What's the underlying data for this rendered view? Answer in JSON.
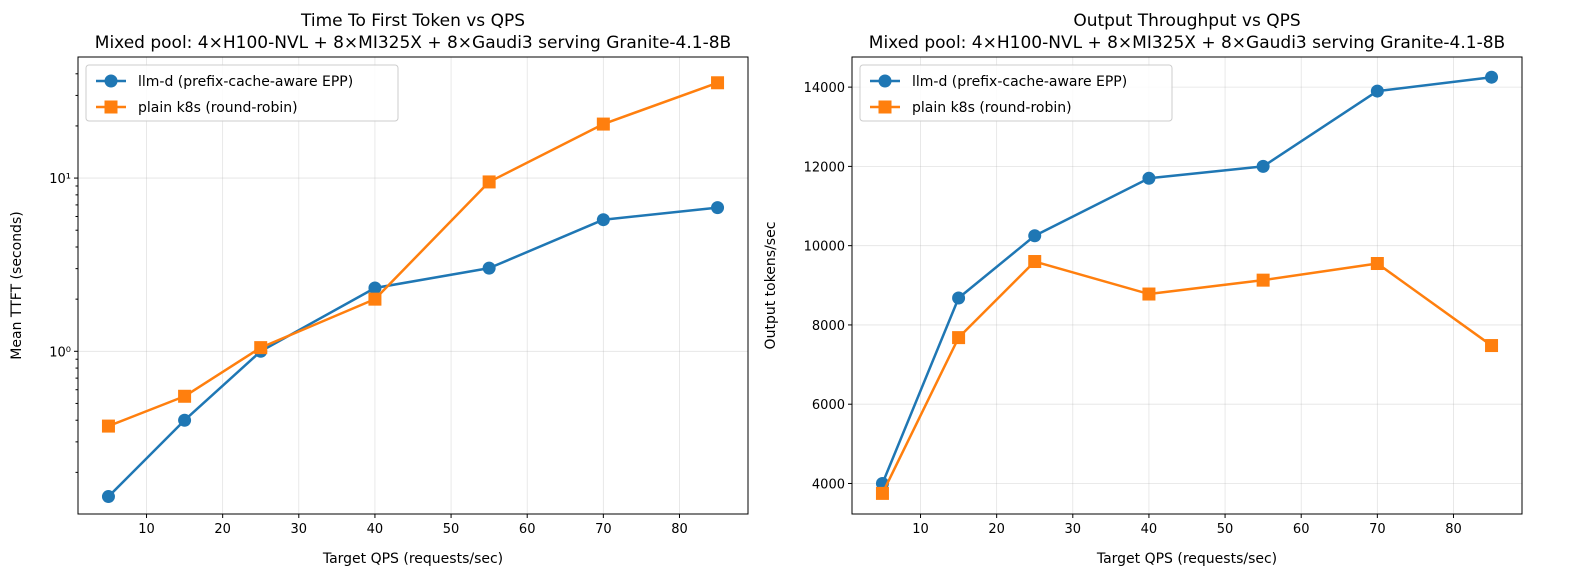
{
  "chart_data": [
    {
      "type": "line",
      "title": "Time To First Token vs QPS\nMixed pool: 4×H100-NVL + 8×MI325X + 8×Gaudi3 serving Granite-4.1-8B",
      "xlabel": "Target QPS (requests/sec)",
      "ylabel": "Mean TTFT (seconds)",
      "yscale": "log",
      "xlim": [
        1,
        89
      ],
      "ylim": [
        0.115,
        50
      ],
      "xticks": [
        10,
        20,
        30,
        40,
        50,
        60,
        70,
        80
      ],
      "xtick_labels": [
        "10",
        "20",
        "30",
        "40",
        "50",
        "60",
        "70",
        "80"
      ],
      "yticks": [
        1,
        10
      ],
      "ytick_labels": [
        "10⁰",
        "10¹"
      ],
      "grid": true,
      "legend": "top-left",
      "x": [
        5,
        15,
        25,
        40,
        55,
        70,
        85
      ],
      "series": [
        {
          "name": "llm-d (prefix-cache-aware EPP)",
          "color": "#1f77b4",
          "marker": "circle",
          "values": [
            0.145,
            0.4,
            1.0,
            2.32,
            3.02,
            5.75,
            6.75
          ]
        },
        {
          "name": "plain k8s (round-robin)",
          "color": "#ff7f0e",
          "marker": "square",
          "values": [
            0.37,
            0.55,
            1.05,
            2.0,
            9.5,
            20.5,
            35.5
          ]
        }
      ]
    },
    {
      "type": "line",
      "title": "Output Throughput vs QPS\nMixed pool: 4×H100-NVL + 8×MI325X + 8×Gaudi3 serving Granite-4.1-8B",
      "xlabel": "Target QPS (requests/sec)",
      "ylabel": "Output tokens/sec",
      "yscale": "linear",
      "xlim": [
        1,
        89
      ],
      "ylim": [
        3230,
        14760
      ],
      "xticks": [
        10,
        20,
        30,
        40,
        50,
        60,
        70,
        80
      ],
      "xtick_labels": [
        "10",
        "20",
        "30",
        "40",
        "50",
        "60",
        "70",
        "80"
      ],
      "yticks": [
        4000,
        6000,
        8000,
        10000,
        12000,
        14000
      ],
      "ytick_labels": [
        "4000",
        "6000",
        "8000",
        "10000",
        "12000",
        "14000"
      ],
      "grid": true,
      "legend": "top-left",
      "x": [
        5,
        15,
        25,
        40,
        55,
        70,
        85
      ],
      "series": [
        {
          "name": "llm-d (prefix-cache-aware EPP)",
          "color": "#1f77b4",
          "marker": "circle",
          "values": [
            4000,
            8680,
            10250,
            11700,
            12000,
            13900,
            14250
          ]
        },
        {
          "name": "plain k8s (round-robin)",
          "color": "#ff7f0e",
          "marker": "square",
          "values": [
            3750,
            7680,
            9600,
            8780,
            9130,
            9550,
            7480
          ]
        }
      ]
    }
  ]
}
